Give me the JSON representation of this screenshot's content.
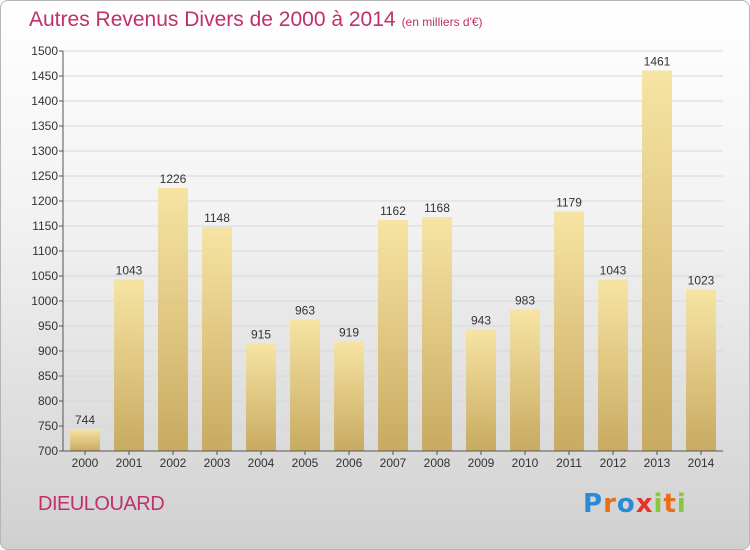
{
  "title": "Autres Revenus Divers de 2000 à 2014",
  "subtitle": "(en milliers d'€)",
  "location": "DIEULOUARD",
  "logo": {
    "letters": [
      "P",
      "r",
      "o",
      "x",
      "i",
      "t",
      "i"
    ],
    "colors": [
      "#2a8ad6",
      "#e86f1a",
      "#2a8ad6",
      "#e8332a",
      "#8cc63f",
      "#e86f1a",
      "#8cc63f"
    ]
  },
  "colors": {
    "bar_light": "#f7e4a3",
    "bar_dark": "#c8aa61",
    "title": "#c0306a",
    "grid": "#d8d8d8"
  },
  "chart_data": {
    "type": "bar",
    "categories": [
      "2000",
      "2001",
      "2002",
      "2003",
      "2004",
      "2005",
      "2006",
      "2007",
      "2008",
      "2009",
      "2010",
      "2011",
      "2012",
      "2013",
      "2014"
    ],
    "values": [
      744,
      1043,
      1226,
      1148,
      915,
      963,
      919,
      1162,
      1168,
      943,
      983,
      1179,
      1043,
      1461,
      1023
    ],
    "ylim": [
      700,
      1500
    ],
    "yticks": [
      700,
      750,
      800,
      850,
      900,
      950,
      1000,
      1050,
      1100,
      1150,
      1200,
      1250,
      1300,
      1350,
      1400,
      1450,
      1500
    ],
    "grid": true
  }
}
